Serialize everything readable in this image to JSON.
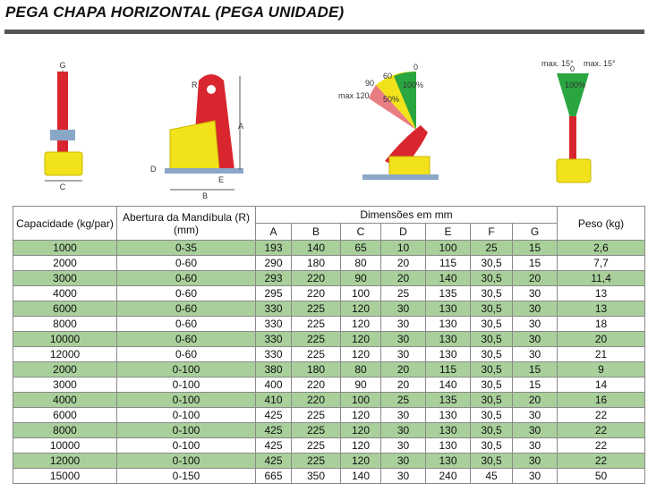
{
  "header": {
    "title": "PEGA CHAPA HORIZONTAL (PEGA UNIDADE)"
  },
  "diagrams": {
    "front": {
      "labels": [
        "G",
        "C"
      ]
    },
    "side": {
      "labels": [
        "R",
        "A",
        "D",
        "E",
        "B"
      ]
    },
    "angles": {
      "labels": [
        "0",
        "60",
        "90",
        "max 120",
        "50%",
        "100%"
      ]
    },
    "tilt": {
      "labels": [
        "max. 15°",
        "0",
        "max. 15°",
        "100%"
      ]
    }
  },
  "table": {
    "header": {
      "capacity": "Capacidade (kg/par)",
      "opening": "Abertura da Mandíbula (R) (mm)",
      "dimensions": "Dimensões em mm",
      "dims": [
        "A",
        "B",
        "C",
        "D",
        "E",
        "F",
        "G"
      ],
      "weight": "Peso (kg)"
    },
    "rows": [
      [
        "1000",
        "0-35",
        "193",
        "140",
        "65",
        "10",
        "100",
        "25",
        "15",
        "2,6"
      ],
      [
        "2000",
        "0-60",
        "290",
        "180",
        "80",
        "20",
        "115",
        "30,5",
        "15",
        "7,7"
      ],
      [
        "3000",
        "0-60",
        "293",
        "220",
        "90",
        "20",
        "140",
        "30,5",
        "20",
        "11,4"
      ],
      [
        "4000",
        "0-60",
        "295",
        "220",
        "100",
        "25",
        "135",
        "30,5",
        "30",
        "13"
      ],
      [
        "6000",
        "0-60",
        "330",
        "225",
        "120",
        "30",
        "130",
        "30,5",
        "30",
        "13"
      ],
      [
        "8000",
        "0-60",
        "330",
        "225",
        "120",
        "30",
        "130",
        "30,5",
        "30",
        "18"
      ],
      [
        "10000",
        "0-60",
        "330",
        "225",
        "120",
        "30",
        "130",
        "30,5",
        "30",
        "20"
      ],
      [
        "12000",
        "0-60",
        "330",
        "225",
        "120",
        "30",
        "130",
        "30,5",
        "30",
        "21"
      ],
      [
        "2000",
        "0-100",
        "380",
        "180",
        "80",
        "20",
        "115",
        "30,5",
        "15",
        "9"
      ],
      [
        "3000",
        "0-100",
        "400",
        "220",
        "90",
        "20",
        "140",
        "30,5",
        "15",
        "14"
      ],
      [
        "4000",
        "0-100",
        "410",
        "220",
        "100",
        "25",
        "135",
        "30,5",
        "20",
        "16"
      ],
      [
        "6000",
        "0-100",
        "425",
        "225",
        "120",
        "30",
        "130",
        "30,5",
        "30",
        "22"
      ],
      [
        "8000",
        "0-100",
        "425",
        "225",
        "120",
        "30",
        "130",
        "30,5",
        "30",
        "22"
      ],
      [
        "10000",
        "0-100",
        "425",
        "225",
        "120",
        "30",
        "130",
        "30,5",
        "30",
        "22"
      ],
      [
        "12000",
        "0-100",
        "425",
        "225",
        "120",
        "30",
        "130",
        "30,5",
        "30",
        "22"
      ],
      [
        "15000",
        "0-150",
        "665",
        "350",
        "140",
        "30",
        "240",
        "45",
        "30",
        "50"
      ]
    ]
  }
}
